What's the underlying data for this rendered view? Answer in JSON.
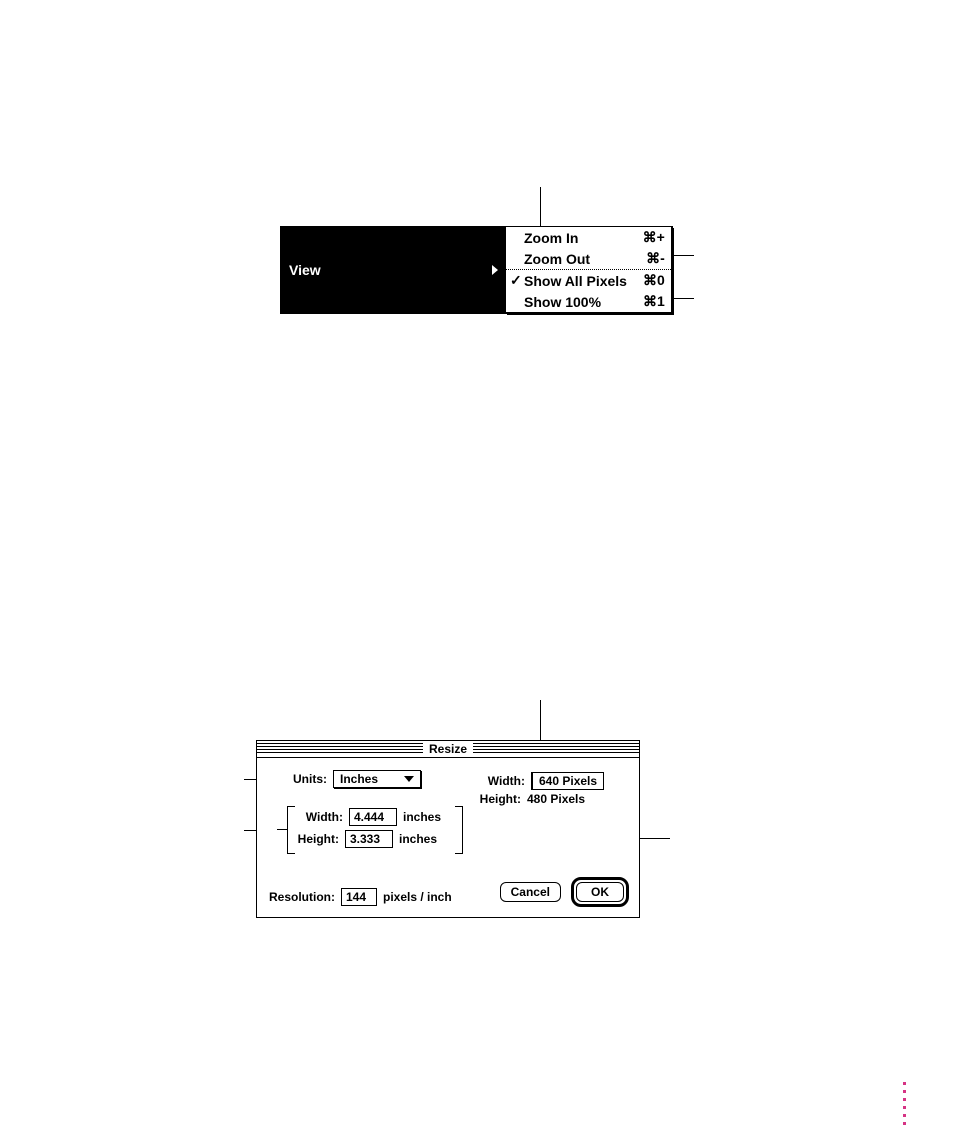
{
  "colors": {
    "background": "#ffffff",
    "ink": "#000000",
    "accent_dots": "#d63384"
  },
  "view_menu": {
    "title": "View",
    "groups": [
      {
        "items": [
          {
            "label": "Zoom In",
            "shortcut": "⌘+"
          },
          {
            "label": "Zoom Out",
            "shortcut": "⌘-"
          }
        ]
      },
      {
        "items": [
          {
            "label": "Show All Pixels",
            "shortcut": "⌘0",
            "checked": true
          },
          {
            "label": "Show 100%",
            "shortcut": "⌘1"
          }
        ]
      }
    ]
  },
  "resize_dialog": {
    "title": "Resize",
    "units_label": "Units:",
    "units_value": "Inches",
    "width_label": "Width:",
    "width_value": "4.444",
    "width_unit": "inches",
    "height_label": "Height:",
    "height_value": "3.333",
    "height_unit": "inches",
    "resolution_label": "Resolution:",
    "resolution_value": "144",
    "resolution_unit": "pixels / inch",
    "px_width_label": "Width:",
    "px_width_value": "640 Pixels",
    "px_height_label": "Height:",
    "px_height_value": "480 Pixels",
    "cancel_label": "Cancel",
    "ok_label": "OK"
  }
}
